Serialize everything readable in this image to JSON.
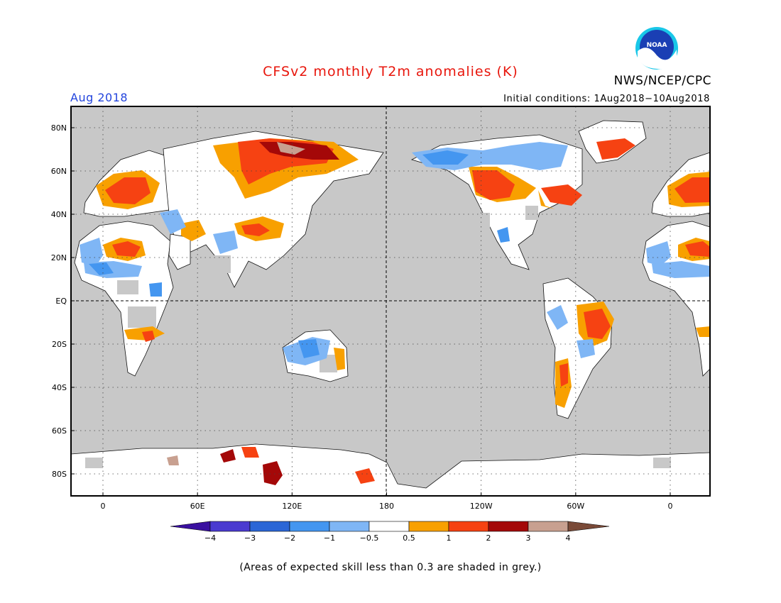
{
  "title": "CFSv2 monthly T2m anomalies (K)",
  "organization": "NWS/NCEP/CPC",
  "logo_text": "NOAA",
  "month": "Aug 2018",
  "initial_conditions": "Initial conditions: 1Aug2018−10Aug2018",
  "lat_labels": [
    "80N",
    "60N",
    "40N",
    "20N",
    "EQ",
    "20S",
    "40S",
    "60S",
    "80S"
  ],
  "lat_values": [
    80,
    60,
    40,
    20,
    0,
    -20,
    -40,
    -60,
    -80
  ],
  "lon_labels": [
    "0",
    "60E",
    "120E",
    "180",
    "120W",
    "60W",
    "0"
  ],
  "lon_values": [
    0,
    60,
    120,
    180,
    240,
    300,
    360
  ],
  "colorbar": {
    "labels": [
      "−4",
      "−3",
      "−2",
      "−1",
      "−0.5",
      "0.5",
      "1",
      "2",
      "3",
      "4"
    ],
    "colors": [
      "#3a10a0",
      "#4a3ad0",
      "#2b66d6",
      "#4496f0",
      "#7fb6f5",
      "#ffffff",
      "#f8a000",
      "#f64212",
      "#a40808",
      "#c8a090",
      "#7a4a38"
    ]
  },
  "colors": {
    "grey_land": "#c8c8c8",
    "ocean": "#c8c8c8",
    "title_red": "#e8160c",
    "month_blue": "#2244dd"
  },
  "footnote": "(Areas of expected skill less than 0.3 are shaded in grey.)"
}
